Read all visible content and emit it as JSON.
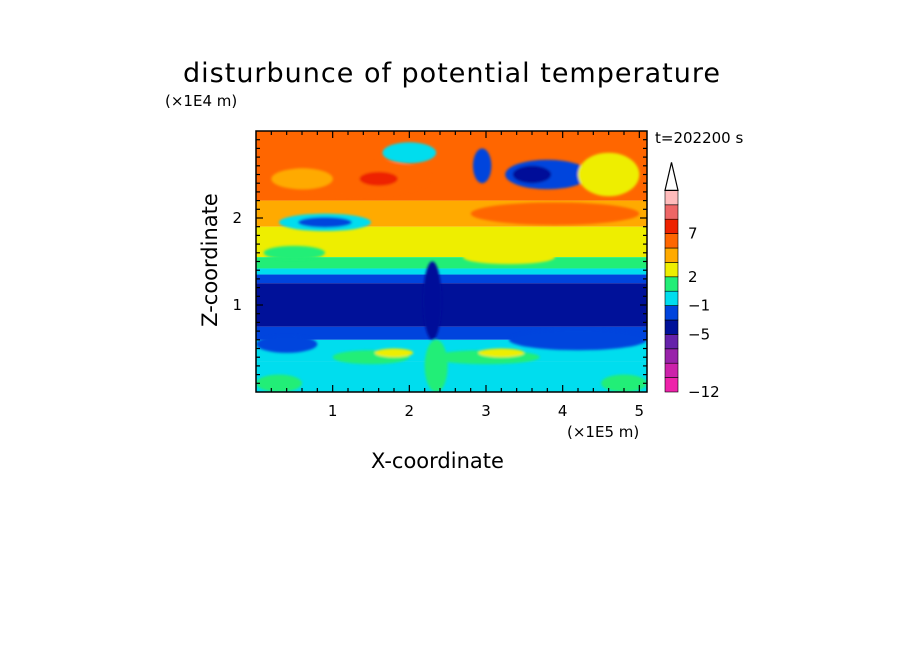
{
  "chart_data": {
    "type": "heatmap",
    "title": "disturbunce of potential temperature",
    "xlabel": "X-coordinate",
    "ylabel": "Z-coordinate",
    "x_scale_label": "(×1E5 m)",
    "y_scale_label": "(×1E4 m)",
    "time_label": "t=202200 s",
    "xlim": [
      0,
      5.1
    ],
    "ylim": [
      0,
      3.0
    ],
    "x_ticks": [
      {
        "value": 1,
        "label": "1"
      },
      {
        "value": 2,
        "label": "2"
      },
      {
        "value": 3,
        "label": "3"
      },
      {
        "value": 4,
        "label": "4"
      },
      {
        "value": 5,
        "label": "5"
      }
    ],
    "y_ticks": [
      {
        "value": 1,
        "label": "1"
      },
      {
        "value": 2,
        "label": "2"
      }
    ],
    "colorbar": {
      "levels": [
        {
          "label": "−12",
          "color": "#ee22aa"
        },
        {
          "label": "",
          "color": "#cc22aa"
        },
        {
          "label": "",
          "color": "#9922aa"
        },
        {
          "label": "",
          "color": "#6622aa"
        },
        {
          "label": "−5",
          "color": "#001199"
        },
        {
          "label": "",
          "color": "#0044dd"
        },
        {
          "label": "−1",
          "color": "#00ddee"
        },
        {
          "label": "",
          "color": "#22ee77"
        },
        {
          "label": "2",
          "color": "#eeee00"
        },
        {
          "label": "",
          "color": "#ffaa00"
        },
        {
          "label": "",
          "color": "#ff6600"
        },
        {
          "label": "7",
          "color": "#ee2200"
        },
        {
          "label": "",
          "color": "#ee6666"
        },
        {
          "label": "",
          "color": "#ffbbbb"
        }
      ],
      "extend_top": true
    },
    "field_bands": [
      {
        "z_from": 2.2,
        "z_to": 3.0,
        "level": 10
      },
      {
        "z_from": 1.9,
        "z_to": 2.2,
        "level": 9
      },
      {
        "z_from": 1.55,
        "z_to": 1.9,
        "level": 8
      },
      {
        "z_from": 1.42,
        "z_to": 1.55,
        "level": 7
      },
      {
        "z_from": 1.35,
        "z_to": 1.42,
        "level": 6
      },
      {
        "z_from": 1.25,
        "z_to": 1.35,
        "level": 5
      },
      {
        "z_from": 0.75,
        "z_to": 1.25,
        "level": 4
      },
      {
        "z_from": 0.6,
        "z_to": 0.75,
        "level": 5
      },
      {
        "z_from": 0.35,
        "z_to": 0.6,
        "level": 6
      },
      {
        "z_from": 0.0,
        "z_to": 0.35,
        "level": 6
      }
    ],
    "field_blobs": [
      {
        "x": 1.3,
        "z": 2.45,
        "rx": 1.0,
        "rz": 0.2,
        "level": 10
      },
      {
        "x": 1.6,
        "z": 2.45,
        "rx": 0.25,
        "rz": 0.08,
        "level": 11
      },
      {
        "x": 0.6,
        "z": 2.45,
        "rx": 0.4,
        "rz": 0.12,
        "level": 9
      },
      {
        "x": 0.9,
        "z": 1.95,
        "rx": 0.6,
        "rz": 0.1,
        "level": 6
      },
      {
        "x": 0.9,
        "z": 1.95,
        "rx": 0.35,
        "rz": 0.06,
        "level": 5
      },
      {
        "x": 2.0,
        "z": 2.75,
        "rx": 0.35,
        "rz": 0.12,
        "level": 6
      },
      {
        "x": 2.95,
        "z": 2.6,
        "rx": 0.12,
        "rz": 0.2,
        "level": 5
      },
      {
        "x": 3.8,
        "z": 2.5,
        "rx": 0.55,
        "rz": 0.17,
        "level": 5
      },
      {
        "x": 3.6,
        "z": 2.5,
        "rx": 0.25,
        "rz": 0.1,
        "level": 4
      },
      {
        "x": 3.9,
        "z": 2.05,
        "rx": 1.1,
        "rz": 0.13,
        "level": 10
      },
      {
        "x": 4.6,
        "z": 2.5,
        "rx": 0.4,
        "rz": 0.25,
        "level": 8
      },
      {
        "x": 3.3,
        "z": 1.55,
        "rx": 0.6,
        "rz": 0.08,
        "level": 8
      },
      {
        "x": 0.5,
        "z": 1.6,
        "rx": 0.4,
        "rz": 0.08,
        "level": 7
      },
      {
        "x": 1.5,
        "z": 0.4,
        "rx": 0.5,
        "rz": 0.08,
        "level": 7
      },
      {
        "x": 3.0,
        "z": 0.4,
        "rx": 0.7,
        "rz": 0.08,
        "level": 7
      },
      {
        "x": 1.8,
        "z": 0.45,
        "rx": 0.25,
        "rz": 0.05,
        "level": 8
      },
      {
        "x": 3.2,
        "z": 0.45,
        "rx": 0.3,
        "rz": 0.05,
        "level": 8
      },
      {
        "x": 0.4,
        "z": 0.55,
        "rx": 0.4,
        "rz": 0.1,
        "level": 5
      },
      {
        "x": 4.2,
        "z": 0.6,
        "rx": 0.9,
        "rz": 0.12,
        "level": 5
      },
      {
        "x": 2.3,
        "z": 1.05,
        "rx": 0.12,
        "rz": 0.45,
        "level": 4
      },
      {
        "x": 2.35,
        "z": 0.3,
        "rx": 0.15,
        "rz": 0.3,
        "level": 7
      },
      {
        "x": 0.3,
        "z": 0.1,
        "rx": 0.3,
        "rz": 0.1,
        "level": 7
      },
      {
        "x": 4.8,
        "z": 0.1,
        "rx": 0.3,
        "rz": 0.1,
        "level": 7
      }
    ]
  }
}
